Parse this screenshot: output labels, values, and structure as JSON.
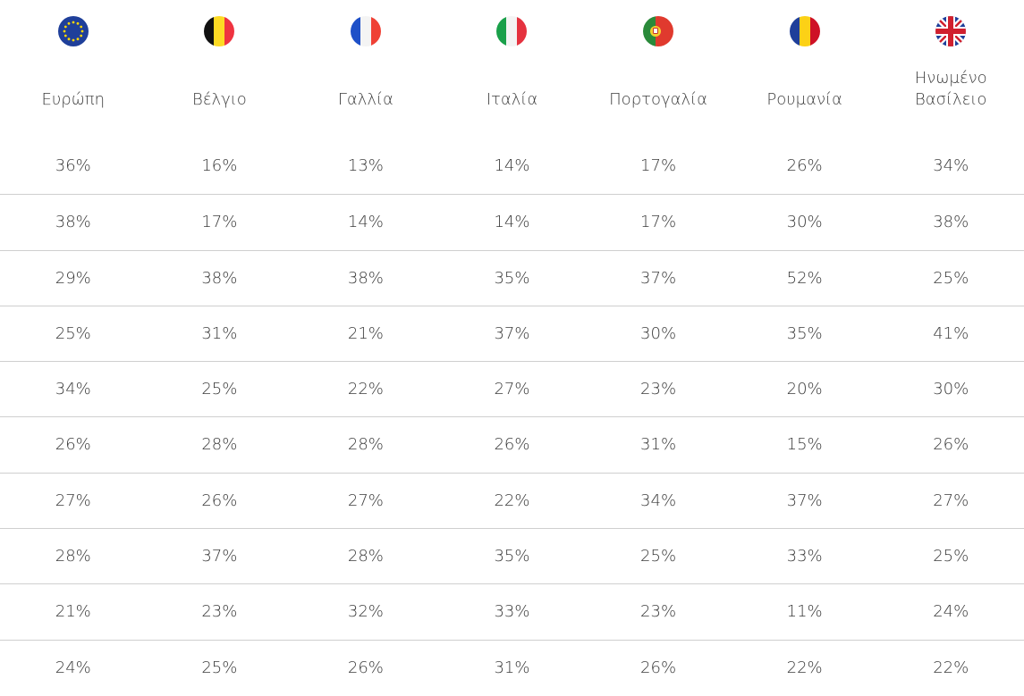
{
  "table": {
    "header": [
      "Ευρώπη",
      "Βέλγιο",
      "Γαλλία",
      "Ιταλία",
      "Πορτογαλία",
      "Ρουμανία",
      "Ηνωμένο Βασίλειο"
    ],
    "rows": [
      [
        "36%",
        "16%",
        "13%",
        "14%",
        "17%",
        "26%",
        "34%"
      ],
      [
        "38%",
        "17%",
        "14%",
        "14%",
        "17%",
        "30%",
        "38%"
      ],
      [
        "29%",
        "38%",
        "38%",
        "35%",
        "37%",
        "52%",
        "25%"
      ],
      [
        "25%",
        "31%",
        "21%",
        "37%",
        "30%",
        "35%",
        "41%"
      ],
      [
        "34%",
        "25%",
        "22%",
        "27%",
        "23%",
        "20%",
        "30%"
      ],
      [
        "26%",
        "28%",
        "28%",
        "26%",
        "31%",
        "15%",
        "26%"
      ],
      [
        "27%",
        "26%",
        "27%",
        "22%",
        "34%",
        "37%",
        "27%"
      ],
      [
        "28%",
        "37%",
        "28%",
        "35%",
        "25%",
        "33%",
        "25%"
      ],
      [
        "21%",
        "23%",
        "32%",
        "33%",
        "23%",
        "11%",
        "24%"
      ],
      [
        "24%",
        "25%",
        "26%",
        "31%",
        "26%",
        "22%",
        "22%"
      ]
    ]
  }
}
